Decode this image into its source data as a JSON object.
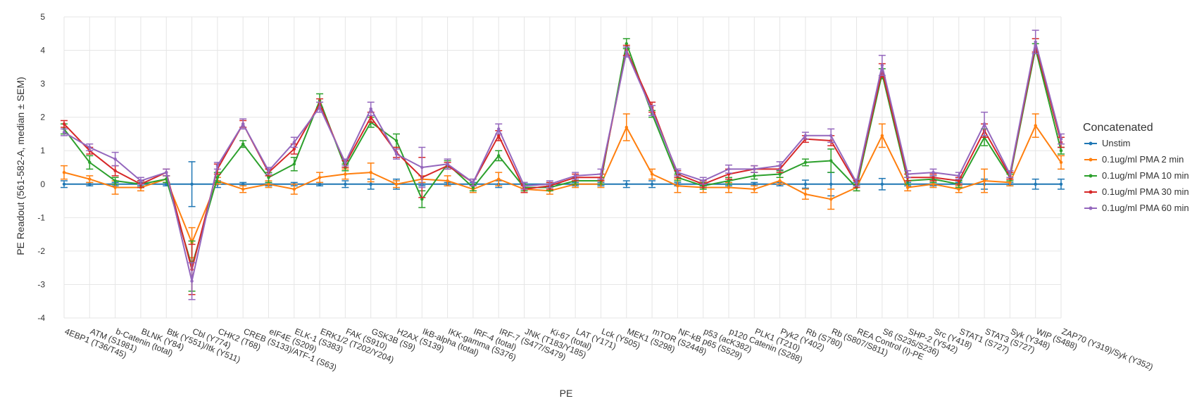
{
  "chart_data": {
    "type": "line",
    "title": "",
    "xlabel": "PE",
    "ylabel": "PE Readout (561-582-A, median ± SEM)",
    "ylim": [
      -4,
      5
    ],
    "yticks": [
      -4,
      -3,
      -2,
      -1,
      0,
      1,
      2,
      3,
      4,
      5
    ],
    "grid": true,
    "error_bars": true,
    "legend": {
      "title": "Concatenated",
      "placement": "right"
    },
    "categories": [
      "4EBP1 (T36/T45)",
      "ATM (S1981)",
      "b-Catenin (total)",
      "BLNK (Y84)",
      "Btk (Y551)/Itk (Y511)",
      "Cbl (Y774)",
      "CHK2 (T68)",
      "CREB (S133)/ATF-1 (S63)",
      "eIF4E (S209)",
      "ELK-1 (S383)",
      "ERK1/2 (T202/Y204)",
      "FAK (S910)",
      "GSK3B (S9)",
      "H2AX (S139)",
      "IkB-alpha (total)",
      "IKK-gamma (S376)",
      "IRF-4 (total)",
      "IRF-7 (S477/S479)",
      "JNK (T183/Y185)",
      "Ki-67 (total)",
      "LAT (Y171)",
      "Lck (Y505)",
      "MEK1 (S298)",
      "mTOR (S2448)",
      "NF-kB p65 (S529)",
      "p53 (acK382)",
      "p120 Catenin (S288)",
      "PLK1 (T210)",
      "Pyk2 (Y402)",
      "Rb (S780)",
      "Rb (S807/S811)",
      "REA Control (I)-PE",
      "S6 (S235/S236)",
      "SHP-2 (Y542)",
      "Src (Y418)",
      "STAT1 (S727)",
      "STAT3 (S727)",
      "Syk (Y348)",
      "WIP (S488)",
      "ZAP70 (Y319)/Syk (Y352)"
    ],
    "series": [
      {
        "name": "Unstim",
        "color": "#1f77b4",
        "values": [
          0,
          0,
          0,
          0,
          0,
          0,
          0,
          0,
          0,
          0,
          0,
          0,
          0,
          0,
          0,
          0,
          0,
          0,
          0,
          0,
          0,
          0,
          0,
          0,
          0,
          0,
          0,
          0,
          0,
          0,
          0,
          0,
          0,
          0,
          0,
          0,
          0,
          0,
          0,
          0
        ],
        "errors": [
          0.1,
          0.05,
          0.05,
          0.05,
          0.05,
          0.67,
          0.1,
          0.05,
          0.05,
          0.05,
          0.05,
          0.1,
          0.15,
          0.15,
          0.05,
          0.05,
          0.05,
          0.1,
          0.05,
          0.05,
          0.05,
          0.05,
          0.1,
          0.1,
          0.05,
          0.05,
          0.05,
          0.05,
          0.05,
          0.12,
          0.35,
          0.05,
          0.17,
          0.05,
          0.05,
          0.05,
          0.15,
          0.05,
          0.15,
          0.15
        ]
      },
      {
        "name": "0.1ug/ml PMA 2 min",
        "color": "#ff7f0e",
        "values": [
          0.35,
          0.15,
          -0.1,
          -0.1,
          0.15,
          -1.75,
          0.1,
          -0.15,
          0,
          -0.15,
          0.2,
          0.3,
          0.35,
          0,
          0.15,
          0.1,
          -0.15,
          0.15,
          -0.15,
          -0.2,
          0,
          0,
          1.7,
          0.3,
          -0.05,
          -0.1,
          -0.1,
          -0.15,
          0.1,
          -0.3,
          -0.45,
          -0.1,
          1.45,
          -0.1,
          0,
          -0.15,
          0.1,
          0.05,
          1.75,
          0.65
        ],
        "errors": [
          0.2,
          0.1,
          0.2,
          0.1,
          0.1,
          0.45,
          0.1,
          0.1,
          0.1,
          0.15,
          0.15,
          0.15,
          0.28,
          0.1,
          0.1,
          0.15,
          0.1,
          0.2,
          0.1,
          0.1,
          0.1,
          0.1,
          0.4,
          0.15,
          0.2,
          0.15,
          0.15,
          0.1,
          0.1,
          0.15,
          0.3,
          0.1,
          0.35,
          0.1,
          0.1,
          0.1,
          0.35,
          0.1,
          0.35,
          0.2
        ]
      },
      {
        "name": "0.1ug/ml PMA 10 min",
        "color": "#2ca02c",
        "values": [
          1.65,
          0.65,
          0.1,
          0,
          0.15,
          -2.45,
          0.2,
          1.2,
          0.2,
          0.6,
          2.5,
          0.5,
          1.85,
          1.3,
          -0.45,
          0.6,
          -0.1,
          0.85,
          -0.1,
          -0.1,
          0.1,
          0.1,
          4.2,
          2.1,
          0.2,
          -0.05,
          0.1,
          0.25,
          0.3,
          0.65,
          0.7,
          -0.1,
          3.3,
          0.1,
          0.15,
          0,
          1.4,
          0.2,
          4.05,
          1
        ],
        "errors": [
          0.15,
          0.2,
          0.1,
          0.1,
          0.1,
          0.75,
          0.15,
          0.1,
          0.15,
          0.2,
          0.2,
          0.1,
          0.15,
          0.2,
          0.25,
          0.1,
          0.1,
          0.15,
          0.1,
          0.1,
          0.1,
          0.1,
          0.15,
          0.1,
          0.1,
          0.1,
          0.1,
          0.1,
          0.1,
          0.1,
          0.35,
          0.1,
          0.15,
          0.1,
          0.1,
          0.1,
          0.25,
          0.1,
          0.15,
          0.1
        ]
      },
      {
        "name": "0.1ug/ml PMA 30 min",
        "color": "#d62728",
        "values": [
          1.8,
          1,
          0.4,
          0,
          0.35,
          -2.55,
          0.45,
          1.8,
          0.35,
          1.05,
          2.4,
          0.6,
          2,
          0.95,
          0.2,
          0.55,
          0.05,
          1.45,
          -0.15,
          -0.05,
          0.2,
          0.2,
          4,
          2.3,
          0.3,
          0,
          0.3,
          0.45,
          0.45,
          1.35,
          1.3,
          0,
          3.4,
          0.2,
          0.2,
          0.1,
          1.6,
          0.25,
          4.15,
          1.25
        ],
        "errors": [
          0.1,
          0.1,
          0.15,
          0.1,
          0.1,
          0.75,
          0.15,
          0.1,
          0.1,
          0.15,
          0.15,
          0.1,
          0.15,
          0.15,
          0.6,
          0.1,
          0.1,
          0.15,
          0.1,
          0.1,
          0.1,
          0.1,
          0.15,
          0.15,
          0.1,
          0.1,
          0.15,
          0.1,
          0.1,
          0.1,
          0.15,
          0.1,
          0.2,
          0.1,
          0.1,
          0.1,
          0.2,
          0.1,
          0.2,
          0.15
        ]
      },
      {
        "name": "0.1ug/ml PMA 60 min",
        "color": "#9467bd",
        "values": [
          1.55,
          1.1,
          0.75,
          0.1,
          0.35,
          -2.9,
          0.55,
          1.8,
          0.4,
          1.25,
          2.3,
          0.65,
          2.25,
          0.9,
          0.5,
          0.6,
          0.05,
          1.65,
          -0.05,
          0,
          0.25,
          0.3,
          3.95,
          2.2,
          0.35,
          0.1,
          0.45,
          0.45,
          0.55,
          1.45,
          1.45,
          0.05,
          3.55,
          0.3,
          0.35,
          0.25,
          1.8,
          0.3,
          4.25,
          1.35
        ],
        "errors": [
          0.1,
          0.1,
          0.2,
          0.1,
          0.1,
          0.55,
          0.1,
          0.15,
          0.1,
          0.15,
          0.15,
          0.1,
          0.2,
          0.15,
          0.6,
          0.15,
          0.1,
          0.15,
          0.1,
          0.1,
          0.1,
          0.15,
          0.15,
          0.15,
          0.1,
          0.1,
          0.12,
          0.1,
          0.12,
          0.1,
          0.2,
          0.1,
          0.3,
          0.1,
          0.1,
          0.1,
          0.35,
          0.1,
          0.35,
          0.15
        ]
      }
    ]
  }
}
